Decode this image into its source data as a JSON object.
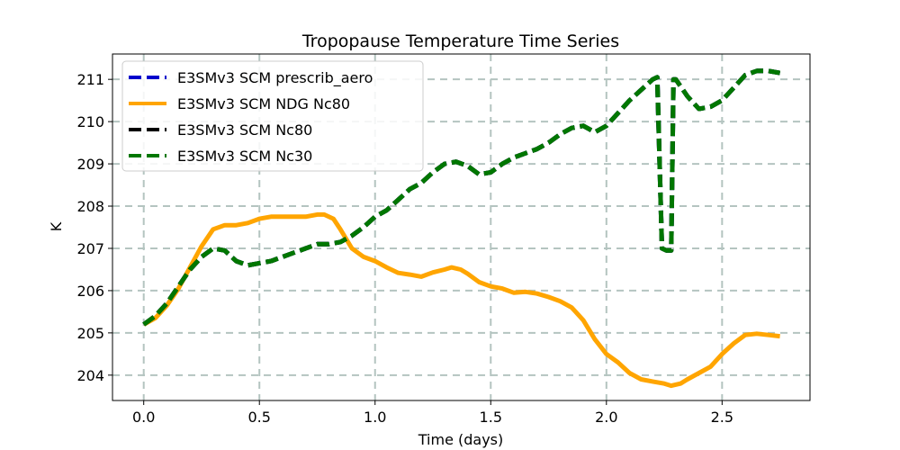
{
  "chart_data": {
    "type": "line",
    "title": "Tropopause Temperature Time Series",
    "xlabel": "Time (days)",
    "ylabel": "K",
    "xlim": [
      -0.135,
      2.88
    ],
    "ylim": [
      203.4,
      211.6
    ],
    "xticks": [
      0.0,
      0.5,
      1.0,
      1.5,
      2.0,
      2.5
    ],
    "xtick_labels": [
      "0.0",
      "0.5",
      "1.0",
      "1.5",
      "2.0",
      "2.5"
    ],
    "yticks": [
      204,
      205,
      206,
      207,
      208,
      209,
      210,
      211
    ],
    "ytick_labels": [
      "204",
      "205",
      "206",
      "207",
      "208",
      "209",
      "210",
      "211"
    ],
    "grid": true,
    "legend_position": "top-left",
    "series": [
      {
        "name": "E3SMv3 SCM prescrib_aero",
        "color": "#0000cc",
        "style": "dashed",
        "x": [
          0.0,
          0.05,
          0.1,
          0.15,
          0.2,
          0.25,
          0.3,
          0.35,
          0.4,
          0.45,
          0.5,
          0.55,
          0.6,
          0.65,
          0.7,
          0.75,
          0.8,
          0.85,
          0.9,
          0.95,
          1.0,
          1.05,
          1.1,
          1.15,
          1.2,
          1.25,
          1.3,
          1.35,
          1.4,
          1.45,
          1.5,
          1.55,
          1.6,
          1.65,
          1.7,
          1.75,
          1.8,
          1.85,
          1.9,
          1.95,
          2.0,
          2.05,
          2.1,
          2.15,
          2.2,
          2.22,
          2.24,
          2.26,
          2.28,
          2.29,
          2.3,
          2.35,
          2.4,
          2.45,
          2.5,
          2.55,
          2.6,
          2.65,
          2.7,
          2.75
        ],
        "y": [
          205.2,
          205.4,
          205.7,
          206.1,
          206.5,
          206.8,
          207.0,
          206.95,
          206.7,
          206.6,
          206.65,
          206.7,
          206.8,
          206.9,
          207.0,
          207.1,
          207.1,
          207.15,
          207.3,
          207.5,
          207.75,
          207.9,
          208.15,
          208.4,
          208.55,
          208.8,
          209.0,
          209.05,
          208.95,
          208.75,
          208.8,
          209.0,
          209.15,
          209.25,
          209.35,
          209.5,
          209.7,
          209.85,
          209.9,
          209.75,
          209.9,
          210.2,
          210.5,
          210.75,
          211.0,
          211.05,
          207.0,
          206.95,
          206.95,
          211.0,
          211.0,
          210.6,
          210.3,
          210.35,
          210.5,
          210.8,
          211.1,
          211.2,
          211.2,
          211.15
        ]
      },
      {
        "name": "E3SMv3 SCM NDG Nc80",
        "color": "#ffa500",
        "style": "solid",
        "x": [
          0.0,
          0.05,
          0.1,
          0.15,
          0.2,
          0.25,
          0.3,
          0.35,
          0.4,
          0.45,
          0.5,
          0.55,
          0.6,
          0.65,
          0.7,
          0.75,
          0.78,
          0.82,
          0.85,
          0.9,
          0.95,
          1.0,
          1.05,
          1.1,
          1.15,
          1.2,
          1.25,
          1.3,
          1.33,
          1.37,
          1.4,
          1.45,
          1.5,
          1.55,
          1.6,
          1.65,
          1.7,
          1.75,
          1.8,
          1.85,
          1.9,
          1.95,
          2.0,
          2.05,
          2.1,
          2.15,
          2.2,
          2.25,
          2.28,
          2.32,
          2.35,
          2.4,
          2.45,
          2.5,
          2.55,
          2.6,
          2.65,
          2.7,
          2.75
        ],
        "y": [
          205.2,
          205.35,
          205.65,
          206.05,
          206.55,
          207.05,
          207.45,
          207.55,
          207.55,
          207.6,
          207.7,
          207.75,
          207.75,
          207.75,
          207.75,
          207.8,
          207.8,
          207.7,
          207.45,
          207.0,
          206.8,
          206.7,
          206.55,
          206.42,
          206.38,
          206.33,
          206.43,
          206.5,
          206.55,
          206.5,
          206.4,
          206.2,
          206.1,
          206.05,
          205.95,
          205.97,
          205.93,
          205.85,
          205.75,
          205.6,
          205.3,
          204.85,
          204.5,
          204.3,
          204.05,
          203.9,
          203.85,
          203.8,
          203.75,
          203.8,
          203.9,
          204.05,
          204.2,
          204.5,
          204.75,
          204.95,
          204.98,
          204.95,
          204.92
        ]
      },
      {
        "name": "E3SMv3 SCM Nc80",
        "color": "#000000",
        "style": "dashed",
        "x": [
          0.0,
          0.05,
          0.1,
          0.15,
          0.2,
          0.25,
          0.3,
          0.35,
          0.4,
          0.45,
          0.5,
          0.55,
          0.6,
          0.65,
          0.7,
          0.75,
          0.8,
          0.85,
          0.9,
          0.95,
          1.0,
          1.05,
          1.1,
          1.15,
          1.2,
          1.25,
          1.3,
          1.35,
          1.4,
          1.45,
          1.5,
          1.55,
          1.6,
          1.65,
          1.7,
          1.75,
          1.8,
          1.85,
          1.9,
          1.95,
          2.0,
          2.05,
          2.1,
          2.15,
          2.2,
          2.22,
          2.24,
          2.26,
          2.28,
          2.29,
          2.3,
          2.35,
          2.4,
          2.45,
          2.5,
          2.55,
          2.6,
          2.65,
          2.7,
          2.75
        ],
        "y": [
          205.2,
          205.4,
          205.7,
          206.1,
          206.5,
          206.8,
          207.0,
          206.95,
          206.7,
          206.6,
          206.65,
          206.7,
          206.8,
          206.9,
          207.0,
          207.1,
          207.1,
          207.15,
          207.3,
          207.5,
          207.75,
          207.9,
          208.15,
          208.4,
          208.55,
          208.8,
          209.0,
          209.05,
          208.95,
          208.75,
          208.8,
          209.0,
          209.15,
          209.25,
          209.35,
          209.5,
          209.7,
          209.85,
          209.9,
          209.75,
          209.9,
          210.2,
          210.5,
          210.75,
          211.0,
          211.05,
          207.0,
          206.95,
          206.95,
          211.0,
          211.0,
          210.6,
          210.3,
          210.35,
          210.5,
          210.8,
          211.1,
          211.2,
          211.2,
          211.15
        ]
      },
      {
        "name": "E3SMv3 SCM Nc30",
        "color": "#007700",
        "style": "dashed",
        "x": [
          0.0,
          0.05,
          0.1,
          0.15,
          0.2,
          0.25,
          0.3,
          0.35,
          0.4,
          0.45,
          0.5,
          0.55,
          0.6,
          0.65,
          0.7,
          0.75,
          0.8,
          0.85,
          0.9,
          0.95,
          1.0,
          1.05,
          1.1,
          1.15,
          1.2,
          1.25,
          1.3,
          1.35,
          1.4,
          1.45,
          1.5,
          1.55,
          1.6,
          1.65,
          1.7,
          1.75,
          1.8,
          1.85,
          1.9,
          1.95,
          2.0,
          2.05,
          2.1,
          2.15,
          2.2,
          2.22,
          2.24,
          2.26,
          2.28,
          2.29,
          2.3,
          2.35,
          2.4,
          2.45,
          2.5,
          2.55,
          2.6,
          2.65,
          2.7,
          2.75
        ],
        "y": [
          205.2,
          205.4,
          205.7,
          206.1,
          206.5,
          206.8,
          207.0,
          206.95,
          206.7,
          206.6,
          206.65,
          206.7,
          206.8,
          206.9,
          207.0,
          207.1,
          207.1,
          207.15,
          207.3,
          207.5,
          207.75,
          207.9,
          208.15,
          208.4,
          208.55,
          208.8,
          209.0,
          209.05,
          208.95,
          208.75,
          208.8,
          209.0,
          209.15,
          209.25,
          209.35,
          209.5,
          209.7,
          209.85,
          209.9,
          209.75,
          209.9,
          210.2,
          210.5,
          210.75,
          211.0,
          211.05,
          207.0,
          206.95,
          206.95,
          211.0,
          211.0,
          210.6,
          210.3,
          210.35,
          210.5,
          210.8,
          211.1,
          211.2,
          211.2,
          211.15
        ]
      }
    ]
  }
}
